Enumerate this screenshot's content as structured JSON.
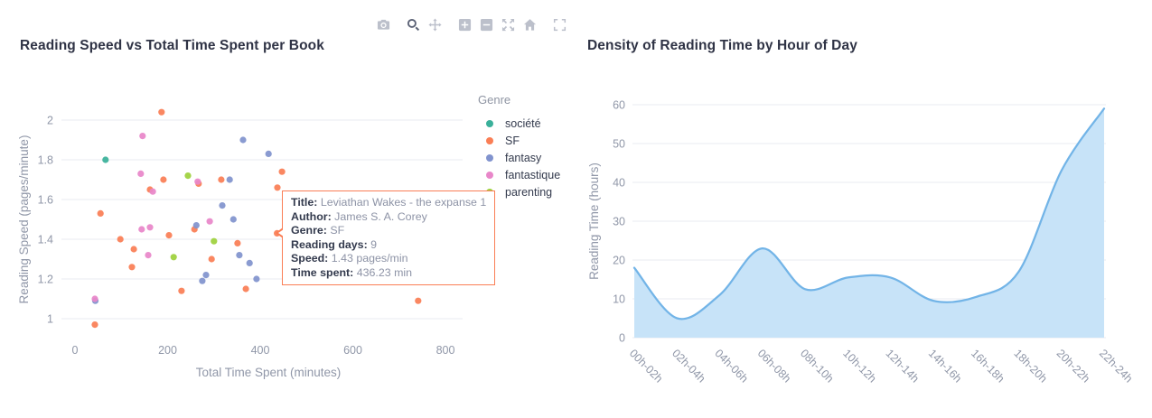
{
  "modebar": {
    "active_tool": "zoom",
    "groups": [
      [
        "camera"
      ],
      [
        "zoom",
        "pan"
      ],
      [
        "zoom-in",
        "zoom-out",
        "autoscale",
        "home"
      ],
      [
        "fullscreen"
      ]
    ]
  },
  "chart_data": [
    {
      "type": "scatter",
      "title": "Reading Speed vs Total Time Spent per Book",
      "xlabel": "Total Time Spent (minutes)",
      "ylabel": "Reading Speed (pages/minute)",
      "xlim": [
        0,
        830
      ],
      "ylim": [
        0.93,
        2.1
      ],
      "x_ticks": [
        0,
        200,
        400,
        600,
        800
      ],
      "y_ticks": [
        1,
        1.2,
        1.4,
        1.6,
        1.8,
        2
      ],
      "grid": "horizontal",
      "legend_title": "Genre",
      "legend_position": "right",
      "series": [
        {
          "name": "société",
          "color": "#3ab09a",
          "points": [
            [
              66,
              1.8
            ]
          ]
        },
        {
          "name": "SF",
          "color": "#fa7e55",
          "points": [
            [
              187,
              2.04
            ],
            [
              55,
              1.53
            ],
            [
              191,
              1.7
            ],
            [
              162,
              1.65
            ],
            [
              267,
              1.68
            ],
            [
              316,
              1.7
            ],
            [
              447,
              1.74
            ],
            [
              437,
              1.66
            ],
            [
              258,
              1.45
            ],
            [
              203,
              1.42
            ],
            [
              98,
              1.4
            ],
            [
              127,
              1.35
            ],
            [
              351,
              1.38
            ],
            [
              295,
              1.3
            ],
            [
              123,
              1.26
            ],
            [
              230,
              1.14
            ],
            [
              369,
              1.15
            ],
            [
              43,
              0.97
            ],
            [
              436.23,
              1.43
            ],
            [
              741,
              1.09
            ]
          ]
        },
        {
          "name": "fantasy",
          "color": "#8193ce",
          "points": [
            [
              363,
              1.9
            ],
            [
              418,
              1.83
            ],
            [
              334,
              1.7
            ],
            [
              318,
              1.57
            ],
            [
              342,
              1.5
            ],
            [
              262,
              1.47
            ],
            [
              355,
              1.32
            ],
            [
              377,
              1.28
            ],
            [
              283,
              1.22
            ],
            [
              275,
              1.19
            ],
            [
              392,
              1.2
            ],
            [
              44,
              1.09
            ]
          ]
        },
        {
          "name": "fantastique",
          "color": "#e887c9",
          "points": [
            [
              146,
              1.92
            ],
            [
              142,
              1.73
            ],
            [
              265,
              1.69
            ],
            [
              168,
              1.64
            ],
            [
              291,
              1.49
            ],
            [
              144,
              1.45
            ],
            [
              162,
              1.46
            ],
            [
              158,
              1.32
            ],
            [
              43,
              1.1
            ]
          ]
        },
        {
          "name": "parenting",
          "color": "#9ed13c",
          "points": [
            [
              244,
              1.72
            ],
            [
              300,
              1.39
            ],
            [
              213,
              1.31
            ]
          ]
        }
      ],
      "tooltip": {
        "anchor_point": [
          436.23,
          1.43
        ],
        "rows": [
          {
            "label": "Title:",
            "value": "Leviathan Wakes - the expanse 1"
          },
          {
            "label": "Author:",
            "value": "James S. A. Corey"
          },
          {
            "label": "Genre:",
            "value": "SF"
          },
          {
            "label": "Reading days:",
            "value": "9"
          },
          {
            "label": "Speed:",
            "value": "1.43 pages/min"
          },
          {
            "label": "Time spent:",
            "value": "436.23 min"
          }
        ]
      }
    },
    {
      "type": "area",
      "title": "Density of Reading Time by Hour of Day",
      "xlabel": "",
      "ylabel": "Reading Time (hours)",
      "ylim": [
        0,
        60
      ],
      "y_ticks": [
        0,
        10,
        20,
        30,
        40,
        50,
        60
      ],
      "grid": "horizontal",
      "categories": [
        "00h-02h",
        "02h-04h",
        "04h-06h",
        "06h-08h",
        "08h-10h",
        "10h-12h",
        "12h-14h",
        "14h-16h",
        "16h-18h",
        "18h-20h",
        "20h-22h",
        "22h-24h"
      ],
      "values": [
        18,
        5,
        11,
        23,
        12.5,
        15.5,
        15.5,
        9.5,
        10.5,
        17,
        43,
        59
      ],
      "line_color": "#72b4e7",
      "fill_color": "#c7e3f8",
      "tick_angle": 45
    }
  ]
}
